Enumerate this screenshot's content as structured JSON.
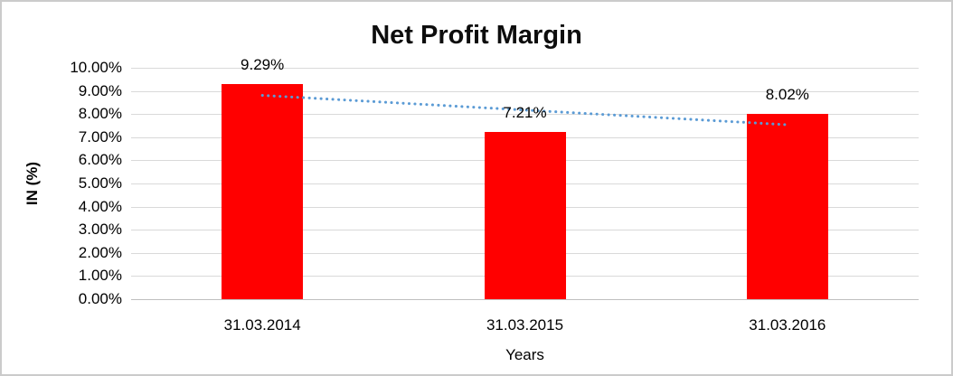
{
  "chart_data": {
    "type": "bar",
    "title": "Net Profit Margin",
    "xlabel": "Years",
    "ylabel": "IN (%)",
    "categories": [
      "31.03.2014",
      "31.03.2015",
      "31.03.2016"
    ],
    "values": [
      9.29,
      7.21,
      8.02
    ],
    "data_labels": [
      "9.29%",
      "7.21%",
      "8.02%"
    ],
    "ylim": [
      0,
      10
    ],
    "ytick_step": 1,
    "ytick_labels": [
      "0.00%",
      "1.00%",
      "2.00%",
      "3.00%",
      "4.00%",
      "5.00%",
      "6.00%",
      "7.00%",
      "8.00%",
      "9.00%",
      "10.00%"
    ],
    "grid": "horizontal",
    "legend": "none",
    "bar_color": "#ff0000",
    "gridline_color": "#d9d9d9",
    "axis_line_color": "#bfbfbf",
    "trendline": {
      "type": "linear",
      "style": "dotted",
      "color": "#5b9bd5",
      "fitted_values": [
        8.81,
        8.17,
        7.54
      ]
    }
  }
}
